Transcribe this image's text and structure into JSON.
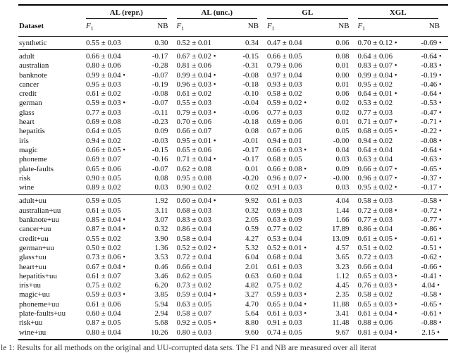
{
  "table": {
    "dataset_header": "Dataset",
    "groups": [
      "AL (repr.)",
      "AL (unc.)",
      "GL",
      "XGL"
    ],
    "subheaders": [
      {
        "main": "F",
        "sub": "1"
      },
      {
        "main": "NB",
        "sub": ""
      },
      {
        "main": "F",
        "sub": "1"
      },
      {
        "main": "NB",
        "sub": ""
      },
      {
        "main": "F",
        "sub": "1"
      },
      {
        "main": "NB",
        "sub": ""
      },
      {
        "main": "F",
        "sub": "1"
      },
      {
        "main": "NB",
        "sub": ""
      }
    ],
    "sections": [
      {
        "rows": [
          [
            "synthetic",
            "0.55 ± 0.03",
            "0.30",
            "0.52 ± 0.01",
            "0.34",
            "0.47 ± 0.04",
            "0.06",
            "0.70 ± 0.12 •",
            "-0.69 •"
          ]
        ]
      },
      {
        "rows": [
          [
            "adult",
            "0.66 ± 0.04",
            "-0.17",
            "0.67 ± 0.02 •",
            "-0.15",
            "0.66 ± 0.05",
            "0.08",
            "0.64 ± 0.06",
            "-0.64 •"
          ],
          [
            "australian",
            "0.80 ± 0.06",
            "-0.28",
            "0.81 ± 0.06",
            "-0.31",
            "0.79 ± 0.06",
            "0.01",
            "0.83 ± 0.07 •",
            "-0.83 •"
          ],
          [
            "banknote",
            "0.99 ± 0.04 •",
            "-0.07",
            "0.99 ± 0.04 •",
            "-0.08",
            "0.97 ± 0.04",
            "0.00",
            "0.99 ± 0.04 •",
            "-0.19 •"
          ],
          [
            "cancer",
            "0.95 ± 0.03",
            "-0.19",
            "0.96 ± 0.03 •",
            "-0.18",
            "0.93 ± 0.03",
            "0.01",
            "0.95 ± 0.02",
            "-0.46 •"
          ],
          [
            "credit",
            "0.61 ± 0.02",
            "-0.08",
            "0.61 ± 0.02",
            "-0.10",
            "0.58 ± 0.02",
            "0.06",
            "0.64 ± 0.01 •",
            "-0.64 •"
          ],
          [
            "german",
            "0.59 ± 0.03 •",
            "-0.07",
            "0.55 ± 0.03",
            "-0.04",
            "0.59 ± 0.02 •",
            "0.02",
            "0.53 ± 0.02",
            "-0.53 •"
          ],
          [
            "glass",
            "0.77 ± 0.03",
            "-0.11",
            "0.79 ± 0.03 •",
            "-0.06",
            "0.77 ± 0.03",
            "0.02",
            "0.77 ± 0.03",
            "-0.47 •"
          ],
          [
            "heart",
            "0.69 ± 0.08",
            "-0.23",
            "0.70 ± 0.06",
            "-0.18",
            "0.69 ± 0.06",
            "0.01",
            "0.71 ± 0.07 •",
            "-0.71 •"
          ],
          [
            "hepatitis",
            "0.64 ± 0.05",
            "0.09",
            "0.66 ± 0.07",
            "0.08",
            "0.67 ± 0.06",
            "0.05",
            "0.68 ± 0.05 •",
            "-0.22 •"
          ],
          [
            "iris",
            "0.94 ± 0.02",
            "-0.03",
            "0.95 ± 0.01 •",
            "-0.01",
            "0.94 ± 0.01",
            "-0.00",
            "0.94 ± 0.02",
            "-0.08 •"
          ],
          [
            "magic",
            "0.66 ± 0.05 •",
            "-0.15",
            "0.65 ± 0.06",
            "-0.17",
            "0.66 ± 0.03 •",
            "0.04",
            "0.64 ± 0.04",
            "-0.64 •"
          ],
          [
            "phoneme",
            "0.69 ± 0.07",
            "-0.16",
            "0.71 ± 0.04 •",
            "-0.17",
            "0.68 ± 0.05",
            "0.03",
            "0.63 ± 0.04",
            "-0.63 •"
          ],
          [
            "plate-faults",
            "0.65 ± 0.06",
            "-0.07",
            "0.62 ± 0.08",
            "0.01",
            "0.66 ± 0.08 •",
            "0.09",
            "0.66 ± 0.07 •",
            "-0.65 •"
          ],
          [
            "risk",
            "0.90 ± 0.05",
            "0.08",
            "0.95 ± 0.08",
            "-0.20",
            "0.96 ± 0.07 •",
            "-0.00",
            "0.96 ± 0.07 •",
            "-0.37 •"
          ],
          [
            "wine",
            "0.89 ± 0.02",
            "0.03",
            "0.90 ± 0.02",
            "0.02",
            "0.91 ± 0.03",
            "0.03",
            "0.95 ± 0.02 •",
            "-0.17 •"
          ]
        ]
      },
      {
        "rows": [
          [
            "adult+uu",
            "0.59 ± 0.05",
            "1.92",
            "0.60 ± 0.04 •",
            "9.92",
            "0.61 ± 0.03",
            "4.04",
            "0.58 ± 0.03",
            "-0.58 •"
          ],
          [
            "australian+uu",
            "0.61 ± 0.05",
            "3.11",
            "0.68 ± 0.03",
            "0.32",
            "0.69 ± 0.03",
            "1.44",
            "0.72 ± 0.08 •",
            "-0.72 •"
          ],
          [
            "banknote+uu",
            "0.85 ± 0.04 •",
            "3.07",
            "0.83 ± 0.03",
            "2.05",
            "0.63 ± 0.09",
            "1.66",
            "0.77 ± 0.03",
            "-0.77 •"
          ],
          [
            "cancer+uu",
            "0.87 ± 0.04 •",
            "0.32",
            "0.86 ± 0.04",
            "0.59",
            "0.77 ± 0.02",
            "17.89",
            "0.86 ± 0.04",
            "-0.86 •"
          ],
          [
            "credit+uu",
            "0.55 ± 0.02",
            "3.90",
            "0.58 ± 0.04",
            "4.27",
            "0.53 ± 0.04",
            "13.09",
            "0.61 ± 0.05 •",
            "-0.61 •"
          ],
          [
            "german+uu",
            "0.50 ± 0.02",
            "1.36",
            "0.52 ± 0.02 •",
            "5.32",
            "0.52 ± 0.01 •",
            "4.57",
            "0.51 ± 0.02",
            "-0.51 •"
          ],
          [
            "glass+uu",
            "0.73 ± 0.06 •",
            "3.53",
            "0.72 ± 0.04",
            "6.04",
            "0.68 ± 0.04",
            "3.65",
            "0.72 ± 0.03",
            "-0.62 •"
          ],
          [
            "heart+uu",
            "0.67 ± 0.04 •",
            "0.46",
            "0.66 ± 0.04",
            "2.01",
            "0.61 ± 0.03",
            "3.23",
            "0.66 ± 0.04",
            "-0.66 •"
          ],
          [
            "hepatitis+uu",
            "0.61 ± 0.07",
            "3.46",
            "0.62 ± 0.05",
            "0.63",
            "0.60 ± 0.04",
            "1.12",
            "0.65 ± 0.03 •",
            "-0.41 •"
          ],
          [
            "iris+uu",
            "0.75 ± 0.02",
            "6.20",
            "0.73 ± 0.02",
            "4.82",
            "0.75 ± 0.02",
            "4.45",
            "0.76 ± 0.03 •",
            "4.04 •"
          ],
          [
            "magic+uu",
            "0.59 ± 0.03 •",
            "3.85",
            "0.59 ± 0.04 •",
            "3.27",
            "0.59 ± 0.03 •",
            "2.35",
            "0.58 ± 0.02",
            "-0.58 •"
          ],
          [
            "phoneme+uu",
            "0.61 ± 0.06",
            "5.94",
            "0.63 ± 0.05",
            "4.70",
            "0.65 ± 0.04 •",
            "11.88",
            "0.65 ± 0.03 •",
            "-0.65 •"
          ],
          [
            "plate-faults+uu",
            "0.60 ± 0.04",
            "2.94",
            "0.58 ± 0.07",
            "5.64",
            "0.61 ± 0.03 •",
            "3.41",
            "0.61 ± 0.04 •",
            "-0.61 •"
          ],
          [
            "risk+uu",
            "0.87 ± 0.05",
            "5.68",
            "0.92 ± 0.05 •",
            "8.80",
            "0.91 ± 0.03",
            "11.48",
            "0.88 ± 0.06",
            "-0.88 •"
          ],
          [
            "wine+uu",
            "0.80 ± 0.04",
            "10.26",
            "0.80 ± 0.03",
            "9.60",
            "0.74 ± 0.05",
            "9.67",
            "0.81 ± 0.04 •",
            "2.15 •"
          ]
        ]
      }
    ]
  },
  "caption": "le 1: Results for all methods on the original and UU-corrupted data sets. The F1 and NB are measured over all iterat"
}
